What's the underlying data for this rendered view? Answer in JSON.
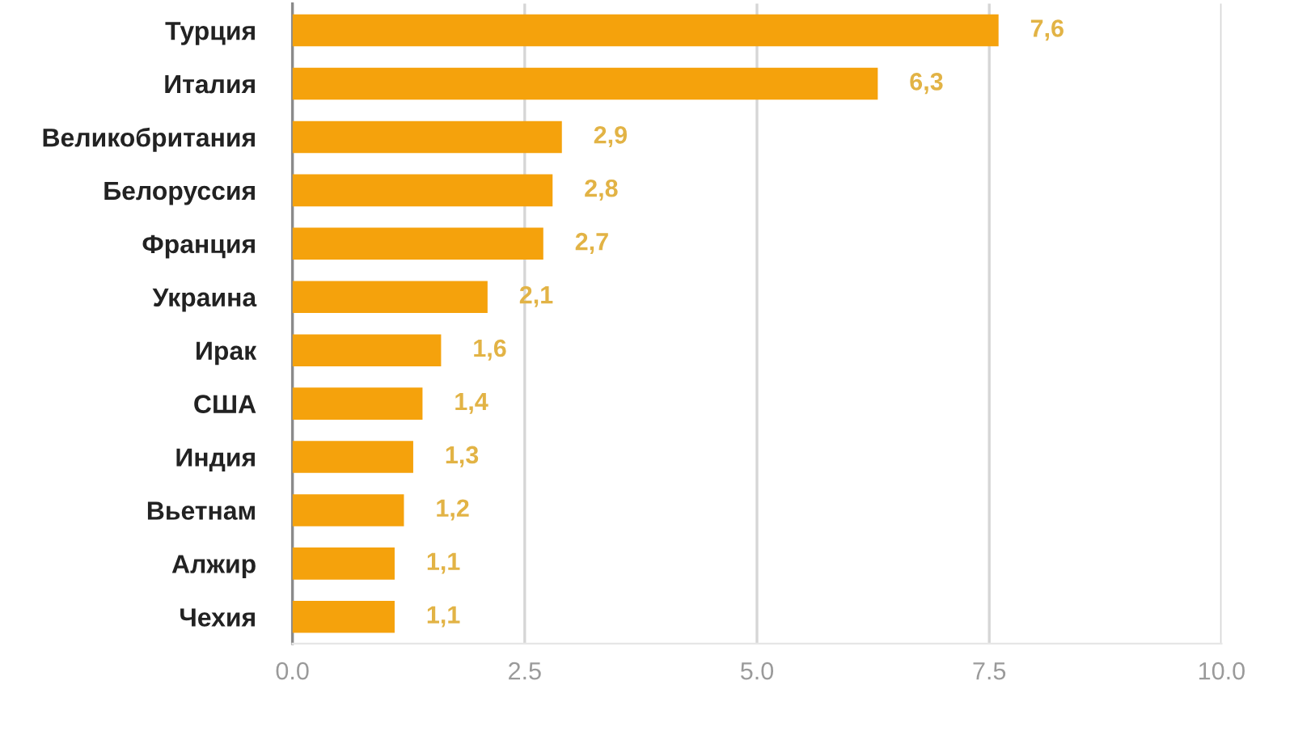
{
  "chart_data": {
    "type": "bar",
    "orientation": "horizontal",
    "categories": [
      "Турция",
      "Италия",
      "Великобритания",
      "Белоруссия",
      "Франция",
      "Украина",
      "Ирак",
      "США",
      "Индия",
      "Вьетнам",
      "Алжир",
      "Чехия"
    ],
    "values": [
      7.6,
      6.3,
      2.9,
      2.8,
      2.7,
      2.1,
      1.6,
      1.4,
      1.3,
      1.2,
      1.1,
      1.1
    ],
    "value_labels": [
      "7,6",
      "6,3",
      "2,9",
      "2,8",
      "2,7",
      "2,1",
      "1,6",
      "1,4",
      "1,3",
      "1,2",
      "1,1",
      "1,1"
    ],
    "color": "#f5a20c",
    "xlim": [
      0,
      10
    ],
    "xticks": [
      {
        "value": 0,
        "label": "0.0"
      },
      2.5,
      {
        "value": 5,
        "label": "5.0"
      },
      7.5,
      {
        "value": 10,
        "label": "10.0"
      }
    ],
    "grid": "x"
  }
}
